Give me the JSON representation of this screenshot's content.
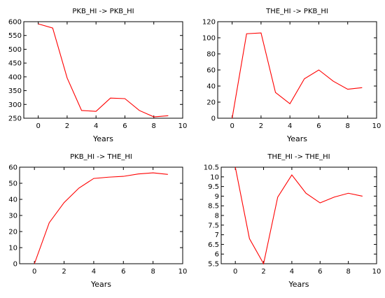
{
  "chart_data": [
    {
      "type": "line",
      "title": "PKB_HI -> PKB_HI",
      "xlabel": "Years",
      "ylabel": "",
      "xlim": [
        -1,
        10
      ],
      "ylim": [
        250,
        600
      ],
      "xticks": [
        0,
        2,
        4,
        6,
        8,
        10
      ],
      "yticks": [
        250,
        300,
        350,
        400,
        450,
        500,
        550,
        600
      ],
      "ytick_labels": [
        "250",
        "300",
        "350",
        "400",
        "450",
        "500",
        "550",
        "600"
      ],
      "grid": false,
      "series": [
        {
          "color": "#ff0000",
          "x": [
            0,
            1,
            2,
            3,
            4,
            5,
            6,
            7,
            8,
            9
          ],
          "values": [
            592,
            577,
            396,
            278,
            275,
            323,
            321,
            278,
            255,
            259
          ]
        }
      ]
    },
    {
      "type": "line",
      "title": "THE_HI -> PKB_HI",
      "xlabel": "Years",
      "ylabel": "",
      "xlim": [
        -1,
        10
      ],
      "ylim": [
        0,
        120
      ],
      "xticks": [
        0,
        2,
        4,
        6,
        8,
        10
      ],
      "yticks": [
        0,
        20,
        40,
        60,
        80,
        100,
        120
      ],
      "ytick_labels": [
        "0",
        "20",
        "40",
        "60",
        "80",
        "100",
        "120"
      ],
      "grid": false,
      "series": [
        {
          "color": "#ff0000",
          "x": [
            0,
            1,
            2,
            3,
            4,
            5,
            6,
            7,
            8,
            9
          ],
          "values": [
            0,
            105,
            106,
            32,
            18,
            49,
            60,
            46,
            36,
            38
          ]
        }
      ]
    },
    {
      "type": "line",
      "title": "PKB_HI -> THE_HI",
      "xlabel": "Years",
      "ylabel": "",
      "xlim": [
        -1,
        10
      ],
      "ylim": [
        0,
        60
      ],
      "xticks": [
        0,
        2,
        4,
        6,
        8,
        10
      ],
      "yticks": [
        0,
        10,
        20,
        30,
        40,
        50,
        60
      ],
      "ytick_labels": [
        "0",
        "10",
        "20",
        "30",
        "40",
        "50",
        "60"
      ],
      "grid": false,
      "series": [
        {
          "color": "#ff0000",
          "x": [
            0,
            1,
            2,
            3,
            4,
            5,
            6,
            7,
            8,
            9
          ],
          "values": [
            0,
            25.5,
            38,
            47,
            53,
            53.8,
            54.3,
            55.8,
            56.5,
            55.5
          ]
        }
      ]
    },
    {
      "type": "line",
      "title": "THE_HI -> THE_HI",
      "xlabel": "Years",
      "ylabel": "",
      "xlim": [
        -1,
        10
      ],
      "ylim": [
        5.5,
        10.5
      ],
      "xticks": [
        0,
        2,
        4,
        6,
        8,
        10
      ],
      "yticks": [
        5.5,
        6,
        6.5,
        7,
        7.5,
        8,
        8.5,
        9,
        9.5,
        10,
        10.5
      ],
      "ytick_labels": [
        "5.5",
        "6",
        "6.5",
        "7",
        "7.5",
        "8",
        "8.5",
        "9",
        "9.5",
        "10",
        "10.5"
      ],
      "grid": false,
      "series": [
        {
          "color": "#ff0000",
          "x": [
            0,
            1,
            2,
            3,
            4,
            5,
            6,
            7,
            8,
            9
          ],
          "values": [
            10.5,
            6.8,
            5.5,
            8.95,
            10.1,
            9.15,
            8.65,
            8.95,
            9.15,
            9
          ]
        }
      ]
    }
  ]
}
